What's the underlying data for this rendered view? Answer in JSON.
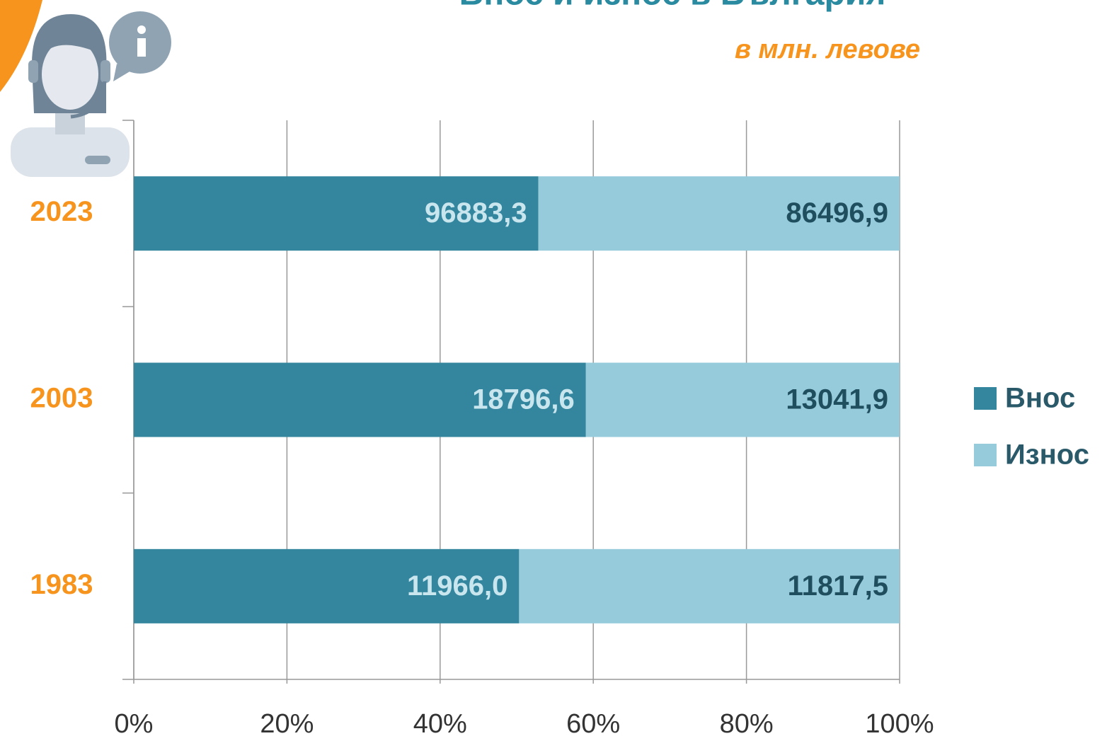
{
  "chart_data": {
    "type": "bar_stacked_percent_horizontal",
    "title": "Внос и износ в България",
    "subtitle": "в млн. левове",
    "categories": [
      "2023",
      "2003",
      "1983"
    ],
    "series": [
      {
        "name": "Внос",
        "color": "#33869e",
        "label_color": "#c9e6ef",
        "values": [
          96883.3,
          18796.6,
          11966.0
        ],
        "value_labels": [
          "96883,3",
          "18796,6",
          "11966,0"
        ]
      },
      {
        "name": "Износ",
        "color": "#96cbdc",
        "label_color": "#1f4e5f",
        "values": [
          86496.9,
          13041.9,
          11817.5
        ],
        "value_labels": [
          "86496,9",
          "13041,9",
          "11817,5"
        ]
      }
    ],
    "xlim": [
      0,
      100
    ],
    "xticks": [
      {
        "value": 0,
        "label": "0%"
      },
      {
        "value": 20,
        "label": "20%"
      },
      {
        "value": 40,
        "label": "40%"
      },
      {
        "value": 60,
        "label": "60%"
      },
      {
        "value": 80,
        "label": "80%"
      },
      {
        "value": 100,
        "label": "100%"
      }
    ],
    "grid": true,
    "legend": "right"
  }
}
